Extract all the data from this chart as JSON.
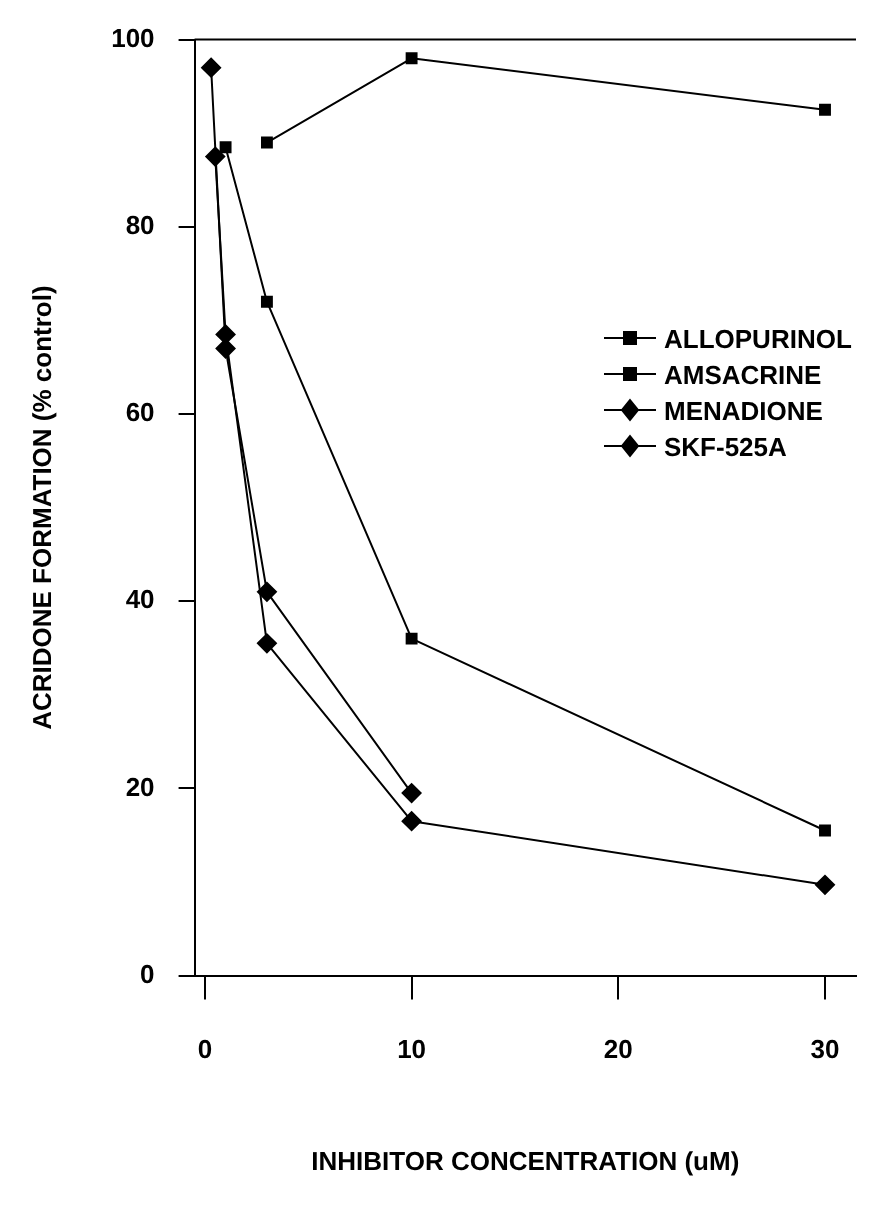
{
  "chart_data": {
    "type": "line",
    "xlabel": "INHIBITOR CONCENTRATION (uM)",
    "ylabel": "ACRIDONE FORMATION (% control)",
    "xlim": [
      -0.5,
      31.5
    ],
    "xticks": [
      0,
      10,
      20,
      30
    ],
    "ylim": [
      0,
      100
    ],
    "yticks": [
      0,
      20,
      40,
      60,
      80,
      100
    ],
    "grid": false,
    "legend": "right",
    "line_style": "solid",
    "series": [
      {
        "name": "ALLOPURINOL",
        "color": "#000000",
        "marker": "square",
        "x": [
          3,
          10,
          30
        ],
        "values": [
          89,
          98,
          92.5
        ]
      },
      {
        "name": "AMSACRINE",
        "color": "#000000",
        "marker": "square",
        "x": [
          1,
          3,
          10,
          30
        ],
        "values": [
          88.5,
          72,
          36,
          15.5
        ]
      },
      {
        "name": "MENADIONE",
        "color": "#000000",
        "marker": "diamond",
        "x": [
          0.5,
          1,
          3,
          10,
          30
        ],
        "values": [
          87.5,
          68.5,
          35.5,
          16.5,
          9.7
        ]
      },
      {
        "name": "SKF-525A",
        "color": "#000000",
        "marker": "diamond",
        "x": [
          0.3,
          1,
          3,
          10
        ],
        "values": [
          97,
          67,
          41,
          19.5
        ]
      }
    ]
  }
}
